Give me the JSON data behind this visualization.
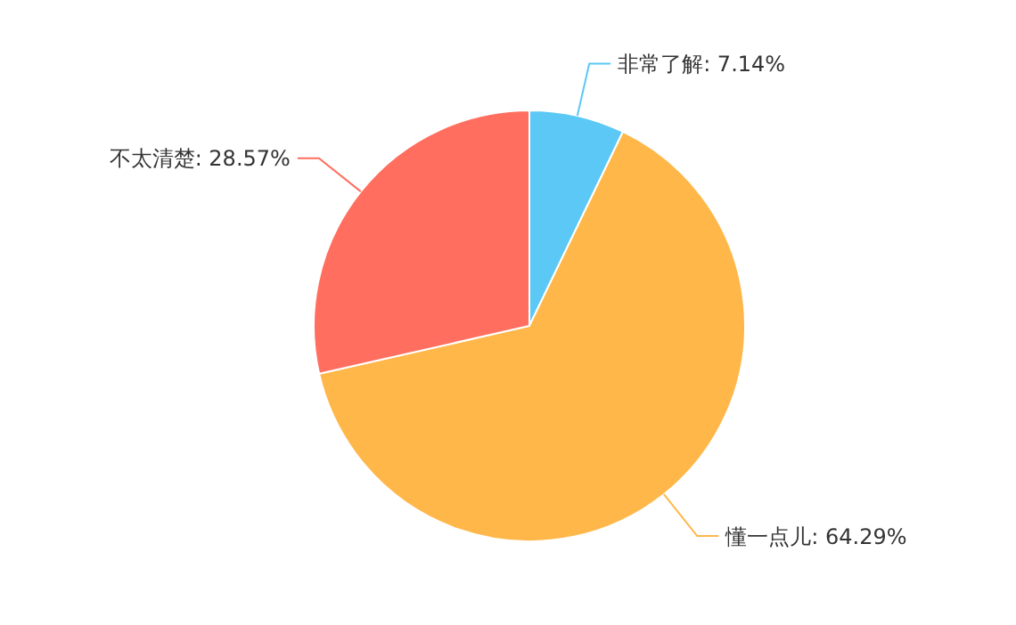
{
  "chart_data": {
    "type": "pie",
    "categories": [
      "非常了解",
      "懂一点儿",
      "不太清楚"
    ],
    "values": [
      7.14,
      64.29,
      28.57
    ],
    "colors": [
      "#5bc8f5",
      "#ffb74a",
      "#ff6e5f"
    ],
    "value_labels": [
      "7.14%",
      "64.29%",
      "28.57%"
    ]
  }
}
